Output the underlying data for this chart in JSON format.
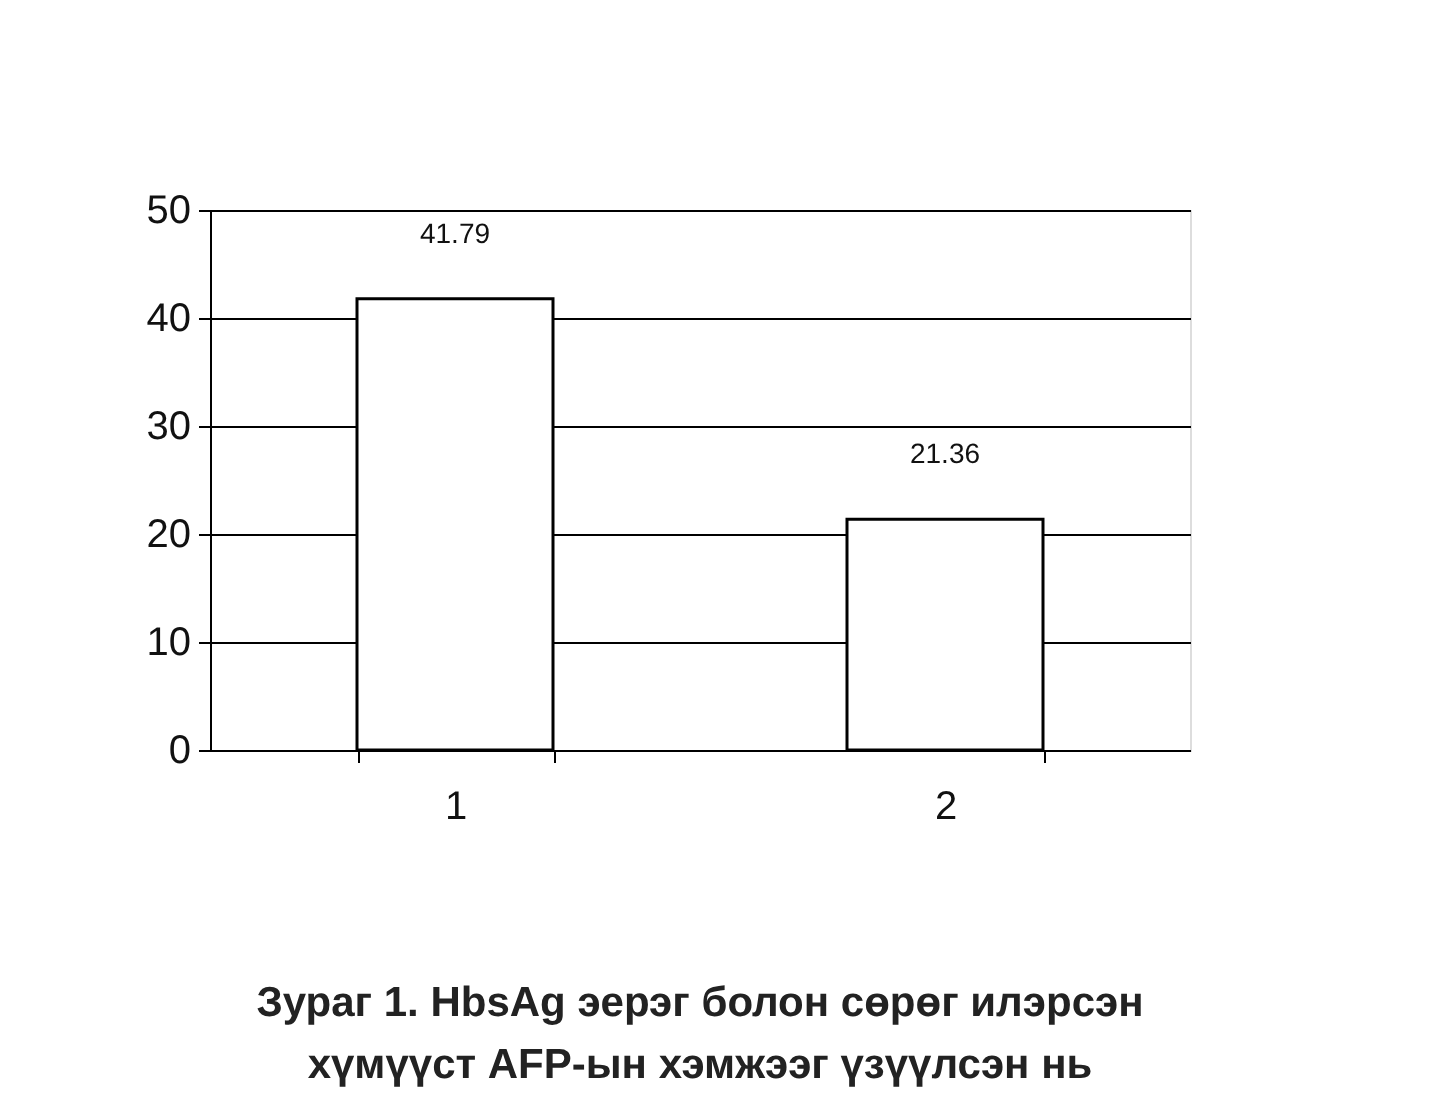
{
  "chart_data": {
    "type": "bar",
    "title": "Зураг 1. HbsAg эерэг болон сөрөг илэрсэн хүмүүст AFP-ын хэмжээг үзүүлсэн нь",
    "categories": [
      "1",
      "2"
    ],
    "values": [
      41.79,
      21.36
    ],
    "color": "#ffffff",
    "ylim": [
      0,
      50
    ],
    "yticks": [
      0,
      10,
      20,
      30,
      40,
      50
    ],
    "grid": "y",
    "data_labels": true
  }
}
